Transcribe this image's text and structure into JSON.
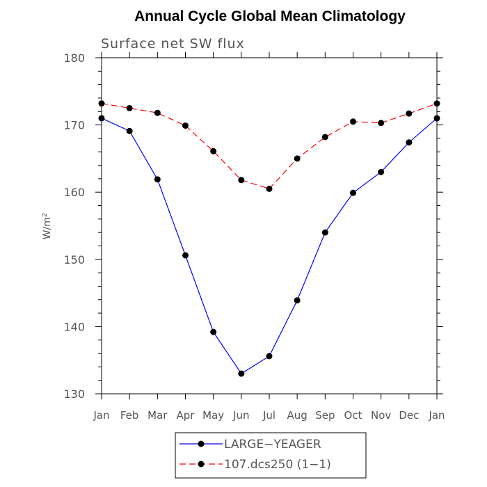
{
  "chart_data": {
    "type": "line",
    "title": "Annual Cycle Global Mean Climatology",
    "subtitle": "Surface net SW flux",
    "xlabel": "",
    "ylabel_base": "W/m",
    "ylabel_sup": "2",
    "categories": [
      "Jan",
      "Feb",
      "Mar",
      "Apr",
      "May",
      "Jun",
      "Jul",
      "Aug",
      "Sep",
      "Oct",
      "Nov",
      "Dec",
      "Jan"
    ],
    "ylim": [
      130,
      180
    ],
    "yticks": [
      130,
      140,
      150,
      160,
      170,
      180
    ],
    "grid": false,
    "legend_placement": "bottom-center",
    "series": [
      {
        "name": "LARGE−YEAGER",
        "color": "#0000ff",
        "dash": "solid",
        "marker": "dot",
        "values": [
          171.0,
          169.1,
          161.9,
          150.6,
          139.2,
          133.0,
          135.6,
          143.9,
          154.0,
          159.9,
          163.0,
          167.4,
          171.0
        ]
      },
      {
        "name": "107.dcs250 (1−1)",
        "color": "#ff0000",
        "dash": "dashed",
        "marker": "dot",
        "values": [
          173.2,
          172.5,
          171.8,
          169.9,
          166.1,
          161.8,
          160.5,
          165.0,
          168.2,
          170.5,
          170.3,
          171.7,
          173.2
        ]
      }
    ]
  }
}
